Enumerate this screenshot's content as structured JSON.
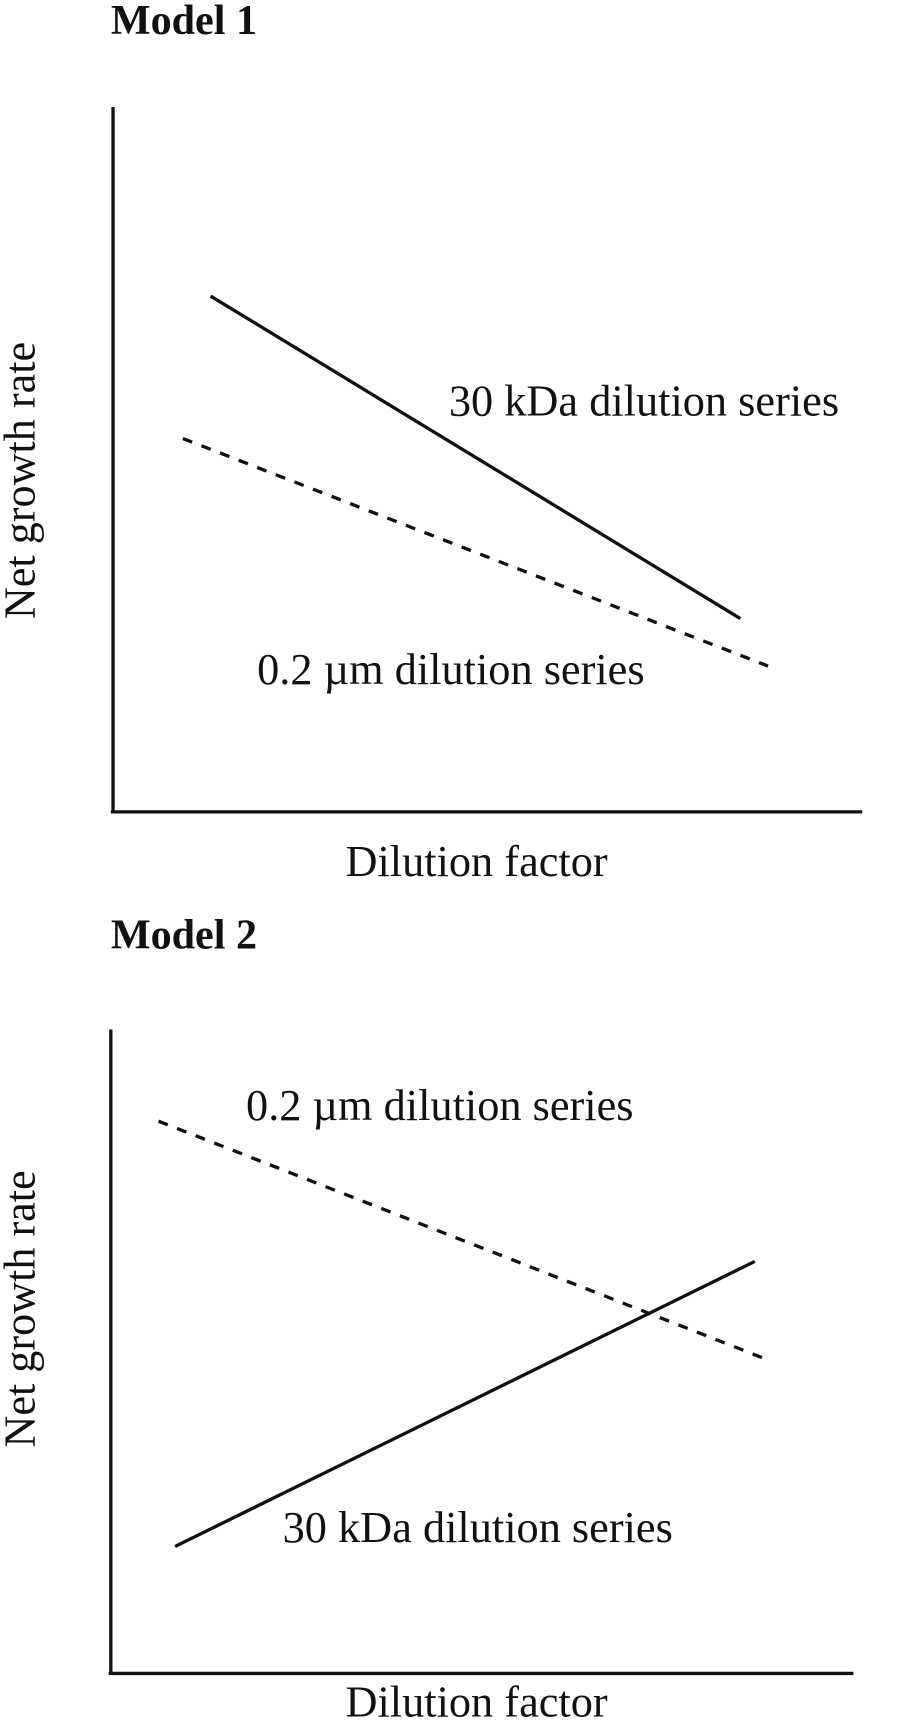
{
  "panels": [
    {
      "title": "Model 1",
      "y_label": "Net growth rate",
      "x_label": "Dilution factor",
      "series_labels": [
        "30 kDa dilution series",
        "0.2 µm dilution series"
      ]
    },
    {
      "title": "Model 2",
      "y_label": "Net growth rate",
      "x_label": "Dilution factor",
      "series_labels": [
        "0.2 µm dilution series",
        "30 kDa dilution series"
      ]
    }
  ]
}
